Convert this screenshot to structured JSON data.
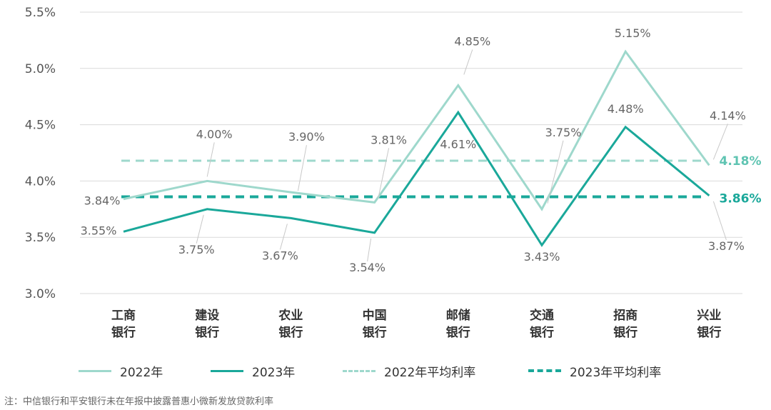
{
  "chart_data": {
    "type": "line",
    "categories": [
      "工商\n银行",
      "建设\n银行",
      "农业\n银行",
      "中国\n银行",
      "邮储\n银行",
      "交通\n银行",
      "招商\n银行",
      "兴业\n银行"
    ],
    "series": [
      {
        "name": "2022年",
        "values": [
          3.84,
          4.0,
          3.9,
          3.81,
          4.85,
          3.75,
          5.15,
          4.14
        ],
        "labels": [
          "3.84%",
          "4.00%",
          "3.90%",
          "3.81%",
          "4.85%",
          "3.75%",
          "5.15%",
          "4.14%"
        ],
        "color": "#9ed8cc",
        "style": "solid"
      },
      {
        "name": "2023年",
        "values": [
          3.55,
          3.75,
          3.67,
          3.54,
          4.61,
          3.43,
          4.48,
          3.87
        ],
        "labels": [
          "3.55%",
          "3.75%",
          "3.67%",
          "3.54%",
          "4.61%",
          "3.43%",
          "4.48%",
          "3.87%"
        ],
        "color": "#1aa89a",
        "style": "solid"
      },
      {
        "name": "2022年平均利率",
        "value": 4.18,
        "label": "4.18%",
        "color": "#9ed8cc",
        "style": "dashed"
      },
      {
        "name": "2023年平均利率",
        "value": 3.86,
        "label": "3.86%",
        "color": "#1aa89a",
        "style": "dashed"
      }
    ],
    "yticks": [
      "3.0%",
      "3.5%",
      "4.0%",
      "4.5%",
      "5.0%",
      "5.5%"
    ],
    "ytick_values": [
      3.0,
      3.5,
      4.0,
      4.5,
      5.0,
      5.5
    ],
    "ylim": [
      3.0,
      5.5
    ],
    "grid": "horizontal",
    "legend_position": "bottom",
    "title": "",
    "xlabel": "",
    "ylabel": ""
  },
  "note": "注：中信银行和平安银行未在年报中披露普惠小微新发放贷款利率"
}
